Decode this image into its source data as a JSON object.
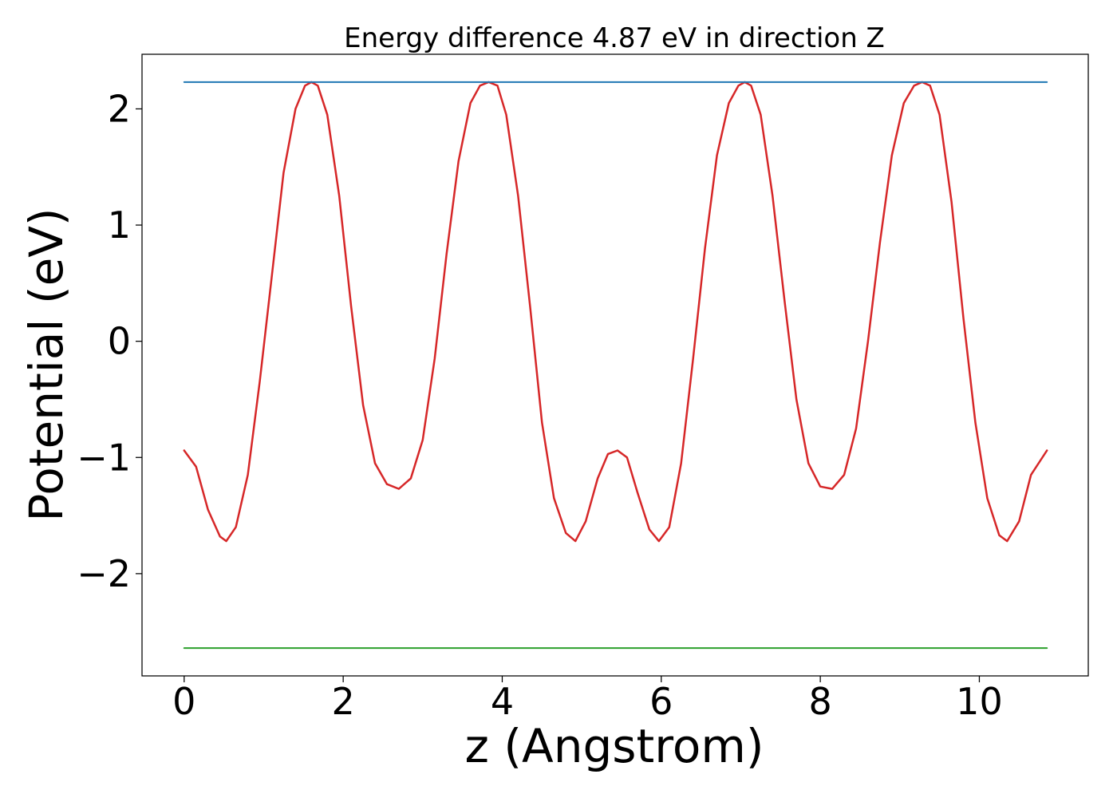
{
  "chart_data": {
    "type": "line",
    "title": "Energy difference 4.87 eV in direction Z",
    "xlabel": "z (Angstrom)",
    "ylabel": "Potential (eV)",
    "xlim": [
      -0.53,
      11.37
    ],
    "ylim": [
      -2.88,
      2.47
    ],
    "x_ticks": [
      0,
      2,
      4,
      6,
      8,
      10
    ],
    "y_ticks": [
      -2,
      -1,
      0,
      1,
      2
    ],
    "x_tick_labels": [
      "0",
      "2",
      "4",
      "6",
      "8",
      "10"
    ],
    "y_tick_labels": [
      "−2",
      "−1",
      "0",
      "1",
      "2"
    ],
    "grid": false,
    "legend": "none",
    "series": [
      {
        "color": "#d62728",
        "x": [
          0.0,
          0.15,
          0.3,
          0.45,
          0.53,
          0.65,
          0.8,
          0.95,
          1.1,
          1.25,
          1.4,
          1.52,
          1.6,
          1.68,
          1.8,
          1.95,
          2.1,
          2.25,
          2.4,
          2.55,
          2.7,
          2.85,
          3.0,
          3.15,
          3.3,
          3.45,
          3.6,
          3.72,
          3.83,
          3.94,
          4.05,
          4.2,
          4.35,
          4.5,
          4.65,
          4.8,
          4.92,
          5.05,
          5.2,
          5.33,
          5.45,
          5.57,
          5.7,
          5.85,
          5.97,
          6.1,
          6.25,
          6.4,
          6.55,
          6.7,
          6.85,
          6.97,
          7.05,
          7.13,
          7.25,
          7.4,
          7.55,
          7.7,
          7.85,
          8.0,
          8.15,
          8.3,
          8.45,
          8.6,
          8.75,
          8.9,
          9.05,
          9.18,
          9.28,
          9.38,
          9.5,
          9.65,
          9.8,
          9.95,
          10.1,
          10.25,
          10.35,
          10.5,
          10.65,
          10.85
        ],
        "values": [
          -0.94,
          -1.08,
          -1.45,
          -1.68,
          -1.72,
          -1.6,
          -1.15,
          -0.35,
          0.55,
          1.45,
          2.0,
          2.2,
          2.23,
          2.2,
          1.95,
          1.25,
          0.3,
          -0.55,
          -1.05,
          -1.23,
          -1.27,
          -1.18,
          -0.85,
          -0.15,
          0.75,
          1.55,
          2.05,
          2.2,
          2.23,
          2.2,
          1.95,
          1.25,
          0.3,
          -0.7,
          -1.35,
          -1.65,
          -1.72,
          -1.55,
          -1.18,
          -0.97,
          -0.94,
          -1.0,
          -1.3,
          -1.62,
          -1.72,
          -1.6,
          -1.05,
          -0.15,
          0.8,
          1.6,
          2.05,
          2.2,
          2.23,
          2.2,
          1.95,
          1.25,
          0.35,
          -0.5,
          -1.05,
          -1.25,
          -1.27,
          -1.15,
          -0.75,
          0.0,
          0.85,
          1.6,
          2.05,
          2.2,
          2.23,
          2.2,
          1.95,
          1.2,
          0.2,
          -0.7,
          -1.35,
          -1.67,
          -1.72,
          -1.55,
          -1.15,
          -0.94
        ]
      },
      {
        "color": "#1f77b4",
        "x": [
          0.0,
          10.85
        ],
        "values": [
          2.23,
          2.23
        ]
      },
      {
        "color": "#2ca02c",
        "x": [
          0.0,
          10.85
        ],
        "values": [
          -2.64,
          -2.64
        ]
      }
    ]
  }
}
